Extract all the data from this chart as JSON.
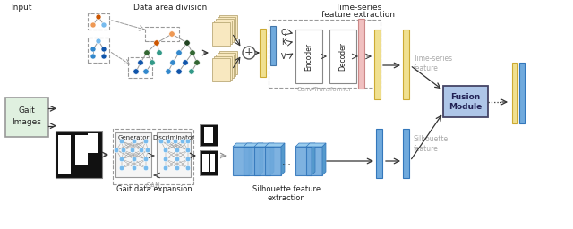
{
  "bg_color": "#ffffff",
  "labels": {
    "input": "Input",
    "data_area": "Data area division",
    "time_series_1": "Time-series",
    "time_series_2": "feature extraction",
    "gait_images": "Gait\nImages",
    "gait_expansion": "Gait data expansion",
    "silhouette_extraction": "Silhouette feature\nextraction",
    "fusion_module": "Fusion\nModule",
    "time_series_feature": "Time-series\nfeature",
    "silhouette_feature": "Silhouette\nfeature",
    "conv_transformer": "Conv-Transformer",
    "gan": "GAN",
    "encoder": "Encoder",
    "decoder": "Decoder",
    "generator": "Generator",
    "discriminator": "Discriminator",
    "Q": "Q",
    "K": "K",
    "V": "V",
    "dots": "..."
  },
  "colors": {
    "gait_box_fill": "#dff0df",
    "gait_box_edge": "#999999",
    "fusion_fill": "#aec6e8",
    "fusion_edge": "#444466",
    "encoder_fill": "#ffffff",
    "node_orange": "#cc5500",
    "node_light_orange": "#ee9955",
    "node_blue": "#3388cc",
    "node_light_blue": "#77bbee",
    "node_dark_blue": "#1155aa",
    "node_green": "#336633",
    "node_dark_green": "#224422",
    "node_teal": "#339988",
    "conv_fill": "#f8e8c0",
    "pink_bar": "#f0c0c0",
    "yellow_bar": "#f0e090",
    "blue_bar": "#70aadd",
    "gray_text": "#aaaaaa",
    "dark_text": "#222222",
    "arrow_color": "#333333",
    "dashed_box": "#999999"
  }
}
